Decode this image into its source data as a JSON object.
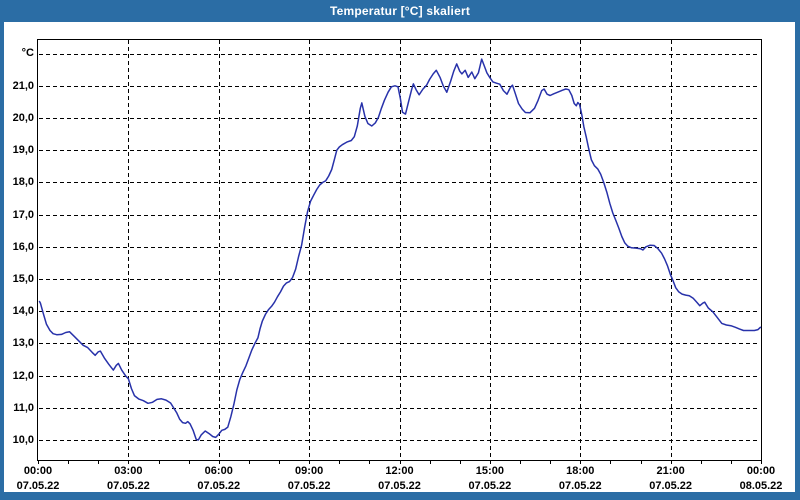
{
  "window": {
    "title": "Temperatur [°C] skaliert",
    "frame_color": "#2b6da5",
    "title_text_color": "#ffffff"
  },
  "chart_data": {
    "type": "line",
    "title": "Temperatur [°C] skaliert",
    "unit_label": "°C",
    "line_color": "#2832aa",
    "grid_color": "#000000",
    "grid_style": "dashed",
    "legend_position": "none",
    "x_axis": {
      "range_hours": [
        0,
        24
      ],
      "major_tick_interval_hours": 3,
      "minor_tick_interval_hours": 1,
      "ticks": [
        {
          "time": "00:00",
          "date": "07.05.22"
        },
        {
          "time": "03:00",
          "date": "07.05.22"
        },
        {
          "time": "06:00",
          "date": "07.05.22"
        },
        {
          "time": "09:00",
          "date": "07.05.22"
        },
        {
          "time": "12:00",
          "date": "07.05.22"
        },
        {
          "time": "15:00",
          "date": "07.05.22"
        },
        {
          "time": "18:00",
          "date": "07.05.22"
        },
        {
          "time": "21:00",
          "date": "07.05.22"
        },
        {
          "time": "00:00",
          "date": "08.05.22"
        }
      ]
    },
    "y_axis": {
      "unit": "°C",
      "tick_values": [
        21,
        20,
        19,
        18,
        17,
        16,
        15,
        14,
        13,
        12,
        11,
        10
      ],
      "tick_labels": [
        "21,0",
        "20,0",
        "19,0",
        "18,0",
        "17,0",
        "16,0",
        "15,0",
        "14,0",
        "13,0",
        "12,0",
        "11,0",
        "10,0"
      ],
      "top_gridline_value": 22,
      "range": [
        9.38,
        22.45
      ]
    },
    "series": [
      {
        "name": "Temperatur",
        "x_unit": "hours",
        "y_unit": "°C",
        "points": [
          [
            0.05,
            14.3
          ],
          [
            0.08,
            14.25
          ],
          [
            0.17,
            13.95
          ],
          [
            0.28,
            13.6
          ],
          [
            0.4,
            13.4
          ],
          [
            0.5,
            13.3
          ],
          [
            0.62,
            13.27
          ],
          [
            0.78,
            13.28
          ],
          [
            0.92,
            13.34
          ],
          [
            1.05,
            13.36
          ],
          [
            1.2,
            13.22
          ],
          [
            1.35,
            13.08
          ],
          [
            1.5,
            12.94
          ],
          [
            1.65,
            12.87
          ],
          [
            1.8,
            12.72
          ],
          [
            1.9,
            12.63
          ],
          [
            2.0,
            12.74
          ],
          [
            2.07,
            12.76
          ],
          [
            2.2,
            12.55
          ],
          [
            2.35,
            12.35
          ],
          [
            2.5,
            12.17
          ],
          [
            2.6,
            12.32
          ],
          [
            2.67,
            12.38
          ],
          [
            2.78,
            12.17
          ],
          [
            2.9,
            12.0
          ],
          [
            3.0,
            11.9
          ],
          [
            3.1,
            11.6
          ],
          [
            3.2,
            11.38
          ],
          [
            3.35,
            11.27
          ],
          [
            3.5,
            11.22
          ],
          [
            3.65,
            11.14
          ],
          [
            3.8,
            11.17
          ],
          [
            3.95,
            11.26
          ],
          [
            4.1,
            11.28
          ],
          [
            4.25,
            11.24
          ],
          [
            4.4,
            11.15
          ],
          [
            4.5,
            11.0
          ],
          [
            4.6,
            10.85
          ],
          [
            4.7,
            10.65
          ],
          [
            4.8,
            10.54
          ],
          [
            4.9,
            10.52
          ],
          [
            4.97,
            10.57
          ],
          [
            5.05,
            10.5
          ],
          [
            5.15,
            10.3
          ],
          [
            5.25,
            10.02
          ],
          [
            5.32,
            10.0
          ],
          [
            5.42,
            10.16
          ],
          [
            5.55,
            10.28
          ],
          [
            5.68,
            10.2
          ],
          [
            5.8,
            10.11
          ],
          [
            5.9,
            10.08
          ],
          [
            6.0,
            10.18
          ],
          [
            6.1,
            10.3
          ],
          [
            6.2,
            10.33
          ],
          [
            6.3,
            10.4
          ],
          [
            6.4,
            10.72
          ],
          [
            6.5,
            11.1
          ],
          [
            6.6,
            11.55
          ],
          [
            6.7,
            11.88
          ],
          [
            6.8,
            12.1
          ],
          [
            6.9,
            12.3
          ],
          [
            7.0,
            12.55
          ],
          [
            7.1,
            12.8
          ],
          [
            7.2,
            13.0
          ],
          [
            7.3,
            13.17
          ],
          [
            7.37,
            13.45
          ],
          [
            7.45,
            13.7
          ],
          [
            7.55,
            13.9
          ],
          [
            7.65,
            14.05
          ],
          [
            7.75,
            14.15
          ],
          [
            7.85,
            14.28
          ],
          [
            7.95,
            14.45
          ],
          [
            8.05,
            14.6
          ],
          [
            8.15,
            14.78
          ],
          [
            8.25,
            14.88
          ],
          [
            8.35,
            14.92
          ],
          [
            8.45,
            15.05
          ],
          [
            8.55,
            15.3
          ],
          [
            8.65,
            15.7
          ],
          [
            8.75,
            16.05
          ],
          [
            8.85,
            16.6
          ],
          [
            8.95,
            17.1
          ],
          [
            9.05,
            17.42
          ],
          [
            9.15,
            17.6
          ],
          [
            9.25,
            17.78
          ],
          [
            9.35,
            17.92
          ],
          [
            9.45,
            18.0
          ],
          [
            9.55,
            18.05
          ],
          [
            9.65,
            18.2
          ],
          [
            9.75,
            18.4
          ],
          [
            9.85,
            18.75
          ],
          [
            9.92,
            19.0
          ],
          [
            10.0,
            19.1
          ],
          [
            10.1,
            19.17
          ],
          [
            10.25,
            19.25
          ],
          [
            10.4,
            19.3
          ],
          [
            10.5,
            19.42
          ],
          [
            10.6,
            19.75
          ],
          [
            10.7,
            20.3
          ],
          [
            10.75,
            20.47
          ],
          [
            10.85,
            20.05
          ],
          [
            10.95,
            19.83
          ],
          [
            11.08,
            19.75
          ],
          [
            11.2,
            19.85
          ],
          [
            11.3,
            20.02
          ],
          [
            11.4,
            20.3
          ],
          [
            11.5,
            20.55
          ],
          [
            11.62,
            20.8
          ],
          [
            11.73,
            20.97
          ],
          [
            11.85,
            21.0
          ],
          [
            11.95,
            20.97
          ],
          [
            12.03,
            20.6
          ],
          [
            12.1,
            20.18
          ],
          [
            12.2,
            20.12
          ],
          [
            12.3,
            20.5
          ],
          [
            12.4,
            20.88
          ],
          [
            12.46,
            21.06
          ],
          [
            12.55,
            20.88
          ],
          [
            12.65,
            20.72
          ],
          [
            12.78,
            20.9
          ],
          [
            12.9,
            21.02
          ],
          [
            13.0,
            21.2
          ],
          [
            13.12,
            21.37
          ],
          [
            13.22,
            21.48
          ],
          [
            13.35,
            21.25
          ],
          [
            13.45,
            21.0
          ],
          [
            13.57,
            20.8
          ],
          [
            13.7,
            21.15
          ],
          [
            13.8,
            21.45
          ],
          [
            13.9,
            21.68
          ],
          [
            14.0,
            21.45
          ],
          [
            14.07,
            21.37
          ],
          [
            14.18,
            21.48
          ],
          [
            14.28,
            21.26
          ],
          [
            14.4,
            21.43
          ],
          [
            14.5,
            21.22
          ],
          [
            14.62,
            21.4
          ],
          [
            14.73,
            21.83
          ],
          [
            14.82,
            21.6
          ],
          [
            14.9,
            21.4
          ],
          [
            15.0,
            21.25
          ],
          [
            15.1,
            21.12
          ],
          [
            15.22,
            21.08
          ],
          [
            15.33,
            21.05
          ],
          [
            15.45,
            20.85
          ],
          [
            15.57,
            20.74
          ],
          [
            15.68,
            20.95
          ],
          [
            15.75,
            21.02
          ],
          [
            15.85,
            20.74
          ],
          [
            15.95,
            20.45
          ],
          [
            16.07,
            20.28
          ],
          [
            16.18,
            20.17
          ],
          [
            16.33,
            20.16
          ],
          [
            16.48,
            20.3
          ],
          [
            16.6,
            20.55
          ],
          [
            16.72,
            20.85
          ],
          [
            16.8,
            20.9
          ],
          [
            16.9,
            20.74
          ],
          [
            17.0,
            20.7
          ],
          [
            17.12,
            20.75
          ],
          [
            17.25,
            20.8
          ],
          [
            17.4,
            20.86
          ],
          [
            17.52,
            20.9
          ],
          [
            17.62,
            20.88
          ],
          [
            17.72,
            20.7
          ],
          [
            17.8,
            20.45
          ],
          [
            17.87,
            20.38
          ],
          [
            17.92,
            20.48
          ],
          [
            17.98,
            20.42
          ],
          [
            18.05,
            20.1
          ],
          [
            18.12,
            19.72
          ],
          [
            18.2,
            19.4
          ],
          [
            18.28,
            19.05
          ],
          [
            18.37,
            18.7
          ],
          [
            18.47,
            18.52
          ],
          [
            18.58,
            18.42
          ],
          [
            18.68,
            18.25
          ],
          [
            18.78,
            18.0
          ],
          [
            18.88,
            17.7
          ],
          [
            18.98,
            17.35
          ],
          [
            19.08,
            17.05
          ],
          [
            19.18,
            16.82
          ],
          [
            19.28,
            16.58
          ],
          [
            19.38,
            16.32
          ],
          [
            19.48,
            16.12
          ],
          [
            19.58,
            16.02
          ],
          [
            19.7,
            15.97
          ],
          [
            19.85,
            15.96
          ],
          [
            20.0,
            15.94
          ],
          [
            20.08,
            15.9
          ],
          [
            20.18,
            16.0
          ],
          [
            20.32,
            16.05
          ],
          [
            20.45,
            16.04
          ],
          [
            20.57,
            15.95
          ],
          [
            20.7,
            15.8
          ],
          [
            20.8,
            15.62
          ],
          [
            20.9,
            15.4
          ],
          [
            21.0,
            15.12
          ],
          [
            21.08,
            14.95
          ],
          [
            21.17,
            14.73
          ],
          [
            21.27,
            14.6
          ],
          [
            21.38,
            14.53
          ],
          [
            21.5,
            14.5
          ],
          [
            21.62,
            14.48
          ],
          [
            21.75,
            14.4
          ],
          [
            21.87,
            14.28
          ],
          [
            21.97,
            14.17
          ],
          [
            22.07,
            14.25
          ],
          [
            22.13,
            14.28
          ],
          [
            22.25,
            14.1
          ],
          [
            22.4,
            13.98
          ],
          [
            22.55,
            13.8
          ],
          [
            22.7,
            13.62
          ],
          [
            22.85,
            13.57
          ],
          [
            23.0,
            13.55
          ],
          [
            23.15,
            13.5
          ],
          [
            23.28,
            13.45
          ],
          [
            23.42,
            13.4
          ],
          [
            23.6,
            13.4
          ],
          [
            23.78,
            13.4
          ],
          [
            23.9,
            13.43
          ],
          [
            23.98,
            13.5
          ]
        ]
      }
    ]
  }
}
